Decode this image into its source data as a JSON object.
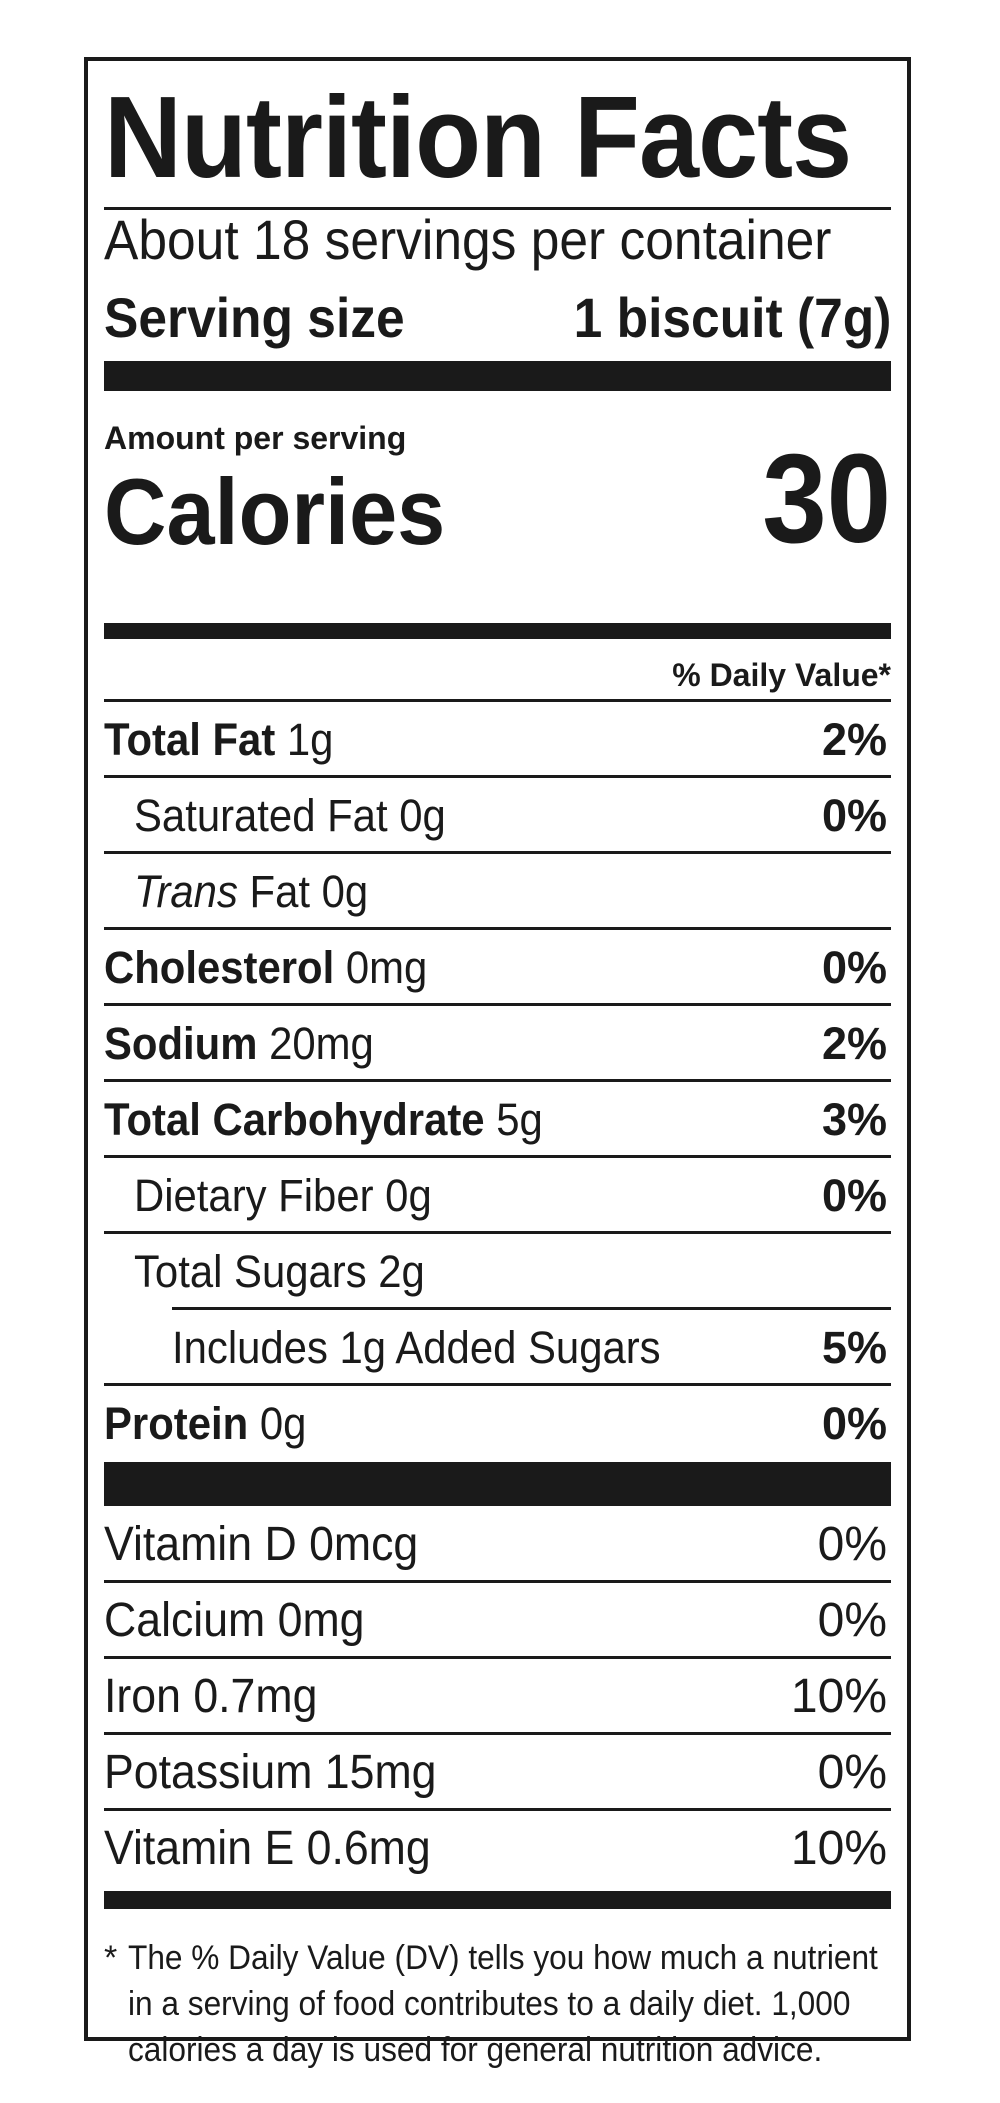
{
  "title": "Nutrition Facts",
  "servings_per_container": "About 18 servings per container",
  "serving_size": {
    "label": "Serving size",
    "value": "1 biscuit (7g)"
  },
  "amount_per_serving": "Amount per serving",
  "calories": {
    "label": "Calories",
    "value": "30"
  },
  "daily_value_header": "% Daily Value*",
  "nutrients": [
    {
      "name": "Total Fat",
      "amount": "1g",
      "dv": "2%"
    },
    {
      "name": "Saturated Fat",
      "amount": "0g",
      "dv": "0%"
    },
    {
      "name": "Trans",
      "amount": "Fat 0g",
      "dv": ""
    },
    {
      "name": "Cholesterol",
      "amount": "0mg",
      "dv": "0%"
    },
    {
      "name": "Sodium",
      "amount": "20mg",
      "dv": "2%"
    },
    {
      "name": "Total Carbohydrate",
      "amount": "5g",
      "dv": "3%"
    },
    {
      "name": "Dietary Fiber",
      "amount": "0g",
      "dv": "0%"
    },
    {
      "name": "Total Sugars",
      "amount": "2g",
      "dv": ""
    },
    {
      "name": "Includes 1g Added Sugars",
      "amount": "",
      "dv": "5%"
    },
    {
      "name": "Protein",
      "amount": "0g",
      "dv": "0%"
    }
  ],
  "vitamins": [
    {
      "name": "Vitamin D 0mcg",
      "dv": "0%"
    },
    {
      "name": "Calcium 0mg",
      "dv": "0%"
    },
    {
      "name": "Iron 0.7mg",
      "dv": "10%"
    },
    {
      "name": "Potassium 15mg",
      "dv": "0%"
    },
    {
      "name": "Vitamin E 0.6mg",
      "dv": "10%"
    }
  ],
  "footnote": {
    "star": "*",
    "text": "The % Daily Value (DV) tells you how much a nutrient in a serving of food contributes to a daily diet. 1,000 calories a day is used for general nutrition advice."
  }
}
